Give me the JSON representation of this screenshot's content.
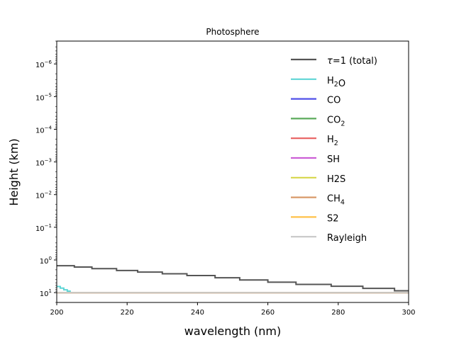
{
  "chart_data": {
    "type": "line",
    "title": "Photosphere",
    "xlabel": "wavelength (nm)",
    "ylabel": "Height (km)",
    "xlim": [
      200,
      300
    ],
    "ylim": [
      20,
      2e-07
    ],
    "y_scale": "log",
    "y_inverted": true,
    "grid": false,
    "legend_position": "top-right",
    "x_ticks": [
      200,
      220,
      240,
      260,
      280,
      300
    ],
    "x_tick_labels": [
      "200",
      "220",
      "240",
      "260",
      "280",
      "300"
    ],
    "y_ticks": [
      10,
      1,
      0.1,
      0.01,
      0.001,
      0.0001,
      1e-05,
      1e-06
    ],
    "y_tick_labels": [
      {
        "base": "10",
        "exp": "1"
      },
      {
        "base": "10",
        "exp": "0"
      },
      {
        "base": "10",
        "exp": "−1"
      },
      {
        "base": "10",
        "exp": "−2"
      },
      {
        "base": "10",
        "exp": "−3"
      },
      {
        "base": "10",
        "exp": "−4"
      },
      {
        "base": "10",
        "exp": "−5"
      },
      {
        "base": "10",
        "exp": "−6"
      }
    ],
    "series": [
      {
        "name": "τ=1 (total)",
        "label_parts": [
          {
            "t": "τ",
            "italic": true
          },
          {
            "t": "=1 (total)"
          }
        ],
        "color": "#555555",
        "steps": [
          [
            200,
            1.5
          ],
          [
            205,
            1.65
          ],
          [
            210,
            1.85
          ],
          [
            217,
            2.1
          ],
          [
            223,
            2.35
          ],
          [
            230,
            2.65
          ],
          [
            237,
            3.0
          ],
          [
            245,
            3.5
          ],
          [
            252,
            4.1
          ],
          [
            260,
            4.8
          ],
          [
            268,
            5.6
          ],
          [
            278,
            6.4
          ],
          [
            287,
            7.4
          ],
          [
            296,
            8.8
          ],
          [
            300,
            8.8
          ]
        ]
      },
      {
        "name": "H2O",
        "label_parts": [
          {
            "t": "H"
          },
          {
            "t": "2",
            "sub": true
          },
          {
            "t": "O"
          }
        ],
        "color": "#5fd6d6",
        "steps": [
          [
            200,
            6.5
          ],
          [
            201,
            7.3
          ],
          [
            202,
            8.2
          ],
          [
            203,
            9.0
          ],
          [
            203.8,
            10
          ]
        ]
      },
      {
        "name": "CO",
        "label_parts": [
          {
            "t": "CO"
          }
        ],
        "color": "#5050e8",
        "steps": [
          [
            200,
            10
          ],
          [
            300,
            10
          ]
        ]
      },
      {
        "name": "CO2",
        "label_parts": [
          {
            "t": "CO"
          },
          {
            "t": "2",
            "sub": true
          }
        ],
        "color": "#5aaa5a",
        "steps": [
          [
            200,
            10
          ],
          [
            300,
            10
          ]
        ]
      },
      {
        "name": "H2",
        "label_parts": [
          {
            "t": "H"
          },
          {
            "t": "2",
            "sub": true
          }
        ],
        "color": "#e86060",
        "steps": [
          [
            200,
            10
          ],
          [
            300,
            10
          ]
        ]
      },
      {
        "name": "SH",
        "label_parts": [
          {
            "t": "SH"
          }
        ],
        "color": "#cc5fd6",
        "steps": [
          [
            200,
            10
          ],
          [
            300,
            10
          ]
        ]
      },
      {
        "name": "H2S",
        "label_parts": [
          {
            "t": "H2S"
          }
        ],
        "color": "#d6d64a",
        "steps": [
          [
            200,
            10
          ],
          [
            300,
            10
          ]
        ]
      },
      {
        "name": "CH4",
        "label_parts": [
          {
            "t": "CH"
          },
          {
            "t": "4",
            "sub": true
          }
        ],
        "color": "#d89a6a",
        "steps": [
          [
            200,
            10
          ],
          [
            300,
            10
          ]
        ]
      },
      {
        "name": "S2",
        "label_parts": [
          {
            "t": "S2"
          }
        ],
        "color": "#ffc24a",
        "steps": [
          [
            200,
            10
          ],
          [
            300,
            10
          ]
        ]
      },
      {
        "name": "Rayleigh",
        "label_parts": [
          {
            "t": "Rayleigh"
          }
        ],
        "color": "#c8c8c8",
        "steps": [
          [
            200,
            10
          ],
          [
            300,
            10
          ]
        ]
      }
    ]
  }
}
